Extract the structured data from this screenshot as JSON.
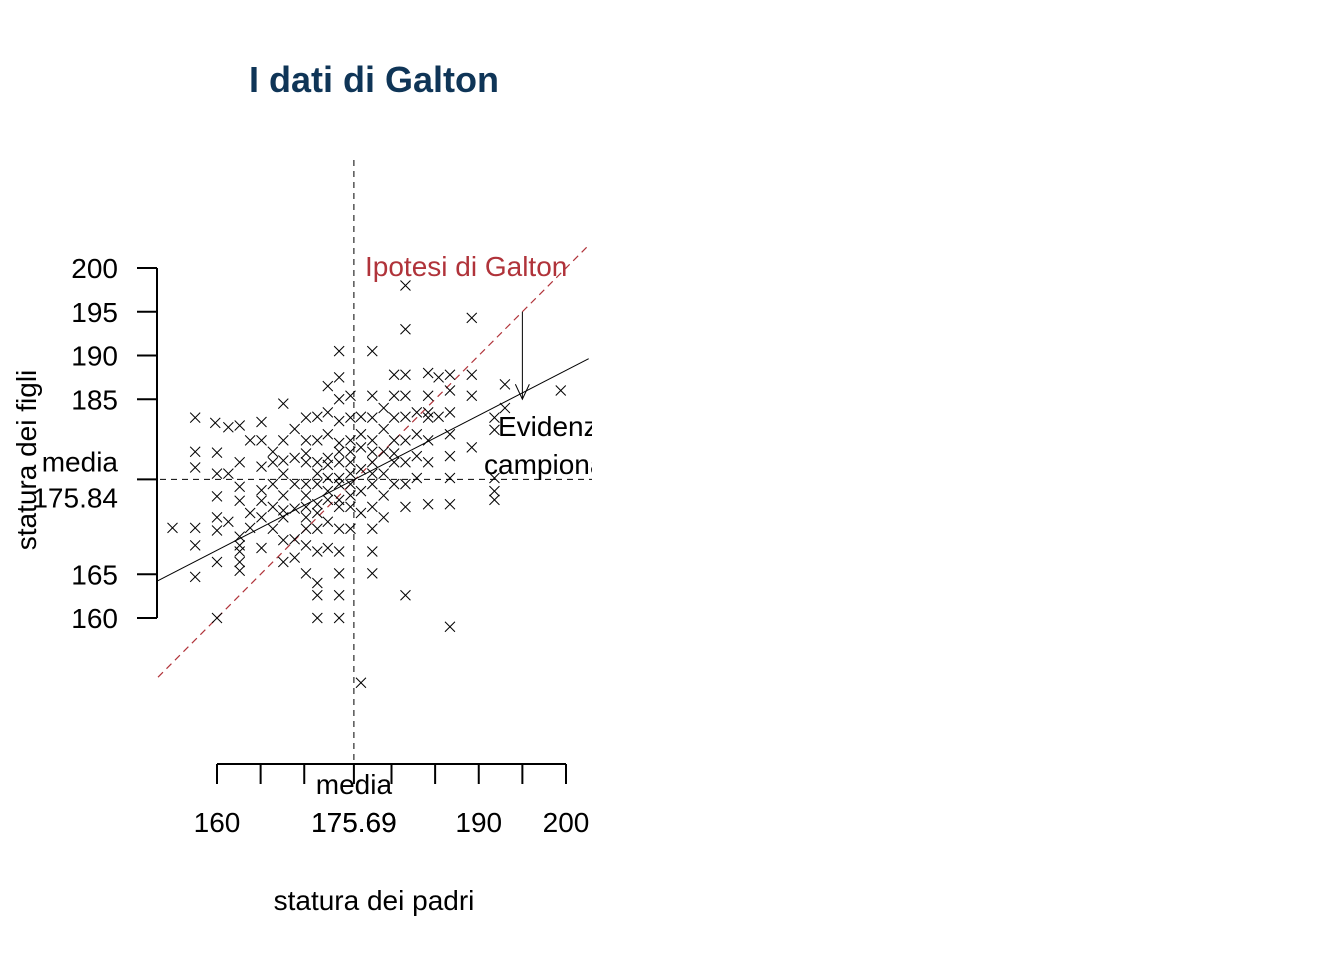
{
  "chart_data": {
    "type": "scatter",
    "title": "I dati di Galton",
    "xlabel": "statura dei padri",
    "ylabel": "statura dei figli",
    "x_ticks": [
      160,
      165,
      170,
      175.69,
      180,
      185,
      190,
      195,
      200
    ],
    "x_tick_labels": [
      {
        "value": 160,
        "text": "160"
      },
      {
        "value": 175.69,
        "text": "175.69"
      },
      {
        "value": 190,
        "text": "190"
      },
      {
        "value": 200,
        "text": "200"
      }
    ],
    "y_ticks": [
      160,
      165,
      175.84,
      185,
      190,
      195,
      200
    ],
    "y_tick_labels": [
      {
        "value": 160,
        "text": "160"
      },
      {
        "value": 165,
        "text": "165"
      },
      {
        "value": 185,
        "text": "185"
      },
      {
        "value": 190,
        "text": "190"
      },
      {
        "value": 195,
        "text": "195"
      },
      {
        "value": 200,
        "text": "200"
      }
    ],
    "xlim": [
      144.5,
      202.6
    ],
    "ylim": [
      152.6,
      207.6
    ],
    "mean_x": 175.69,
    "mean_y": 175.84,
    "mean_x_label": [
      "media",
      "175.69"
    ],
    "mean_y_label": [
      "media",
      "175.84"
    ],
    "identity_line": {
      "slope": 1,
      "intercept": 0,
      "color": "#b0333a",
      "label": "Ipotesi di Galton"
    },
    "regression_line": {
      "slope": 0.514,
      "intercept": 85.5,
      "color": "#000000"
    },
    "annotation_text": [
      "Evidenza",
      "campionaria"
    ],
    "annotation_arrow": {
      "x": 195,
      "y_from": 195,
      "y_to": 185
    },
    "marker": "x",
    "points": [
      [
        152.4,
        163.8
      ],
      [
        154.9,
        170.3
      ],
      [
        157.5,
        170.3
      ],
      [
        157.5,
        177.2
      ],
      [
        157.5,
        182.9
      ],
      [
        157.5,
        179.0
      ],
      [
        157.5,
        168.3
      ],
      [
        157.5,
        164.7
      ],
      [
        159.8,
        182.3
      ],
      [
        160.0,
        176.5
      ],
      [
        160.0,
        171.5
      ],
      [
        160.0,
        166.4
      ],
      [
        160.0,
        160.0
      ],
      [
        160.0,
        173.9
      ],
      [
        160.0,
        170.0
      ],
      [
        160.0,
        178.9
      ],
      [
        161.3,
        181.8
      ],
      [
        161.3,
        176.5
      ],
      [
        161.3,
        171.0
      ],
      [
        162.6,
        182.0
      ],
      [
        162.6,
        177.8
      ],
      [
        162.6,
        173.4
      ],
      [
        162.6,
        168.3
      ],
      [
        162.6,
        166.4
      ],
      [
        162.6,
        165.4
      ],
      [
        162.6,
        169.3
      ],
      [
        162.6,
        167.6
      ],
      [
        162.6,
        175.0
      ],
      [
        163.8,
        180.3
      ],
      [
        163.8,
        172.0
      ],
      [
        163.8,
        170.3
      ],
      [
        165.1,
        177.3
      ],
      [
        165.1,
        174.6
      ],
      [
        165.1,
        171.5
      ],
      [
        165.1,
        168.0
      ],
      [
        165.1,
        180.3
      ],
      [
        165.1,
        182.4
      ],
      [
        165.1,
        173.4
      ],
      [
        166.4,
        179.0
      ],
      [
        166.4,
        175.3
      ],
      [
        166.4,
        172.7
      ],
      [
        166.4,
        170.2
      ],
      [
        166.4,
        177.8
      ],
      [
        167.6,
        184.5
      ],
      [
        167.6,
        180.3
      ],
      [
        167.6,
        176.5
      ],
      [
        167.6,
        174.0
      ],
      [
        167.6,
        171.5
      ],
      [
        167.6,
        168.9
      ],
      [
        167.6,
        166.4
      ],
      [
        167.6,
        172.3
      ],
      [
        167.6,
        178.0
      ],
      [
        168.9,
        181.6
      ],
      [
        168.9,
        178.3
      ],
      [
        168.9,
        175.3
      ],
      [
        168.9,
        172.5
      ],
      [
        168.9,
        169.0
      ],
      [
        168.9,
        166.9
      ],
      [
        170.2,
        182.9
      ],
      [
        170.2,
        180.3
      ],
      [
        170.2,
        177.8
      ],
      [
        170.2,
        175.3
      ],
      [
        170.2,
        172.7
      ],
      [
        170.2,
        170.2
      ],
      [
        170.2,
        168.3
      ],
      [
        170.2,
        165.1
      ],
      [
        170.2,
        178.8
      ],
      [
        170.2,
        174.0
      ],
      [
        170.2,
        171.5
      ],
      [
        171.5,
        183.0
      ],
      [
        171.5,
        180.3
      ],
      [
        171.5,
        177.8
      ],
      [
        171.5,
        175.3
      ],
      [
        171.5,
        173.0
      ],
      [
        171.5,
        170.2
      ],
      [
        171.5,
        167.6
      ],
      [
        171.5,
        164.0
      ],
      [
        171.5,
        162.6
      ],
      [
        171.5,
        160.0
      ],
      [
        171.5,
        176.5
      ],
      [
        171.5,
        172.0
      ],
      [
        172.7,
        186.5
      ],
      [
        172.7,
        183.5
      ],
      [
        172.7,
        181.0
      ],
      [
        172.7,
        178.3
      ],
      [
        172.7,
        176.0
      ],
      [
        172.7,
        173.5
      ],
      [
        172.7,
        171.0
      ],
      [
        172.7,
        168.0
      ],
      [
        172.7,
        177.5
      ],
      [
        172.7,
        174.5
      ],
      [
        174.0,
        190.5
      ],
      [
        174.0,
        187.5
      ],
      [
        174.0,
        185.0
      ],
      [
        174.0,
        182.5
      ],
      [
        174.0,
        180.0
      ],
      [
        174.0,
        177.8
      ],
      [
        174.0,
        175.3
      ],
      [
        174.0,
        172.7
      ],
      [
        174.0,
        170.2
      ],
      [
        174.0,
        167.6
      ],
      [
        174.0,
        165.1
      ],
      [
        174.0,
        162.6
      ],
      [
        174.0,
        160.0
      ],
      [
        174.0,
        179.0
      ],
      [
        174.0,
        176.0
      ],
      [
        174.0,
        173.5
      ],
      [
        175.3,
        185.4
      ],
      [
        175.3,
        182.9
      ],
      [
        175.3,
        180.3
      ],
      [
        175.3,
        177.8
      ],
      [
        175.3,
        175.3
      ],
      [
        175.3,
        172.7
      ],
      [
        175.3,
        170.2
      ],
      [
        175.3,
        179.0
      ],
      [
        175.3,
        176.5
      ],
      [
        175.3,
        174.0
      ],
      [
        176.5,
        152.6
      ],
      [
        176.5,
        183.0
      ],
      [
        176.5,
        179.5
      ],
      [
        176.5,
        177.0
      ],
      [
        176.5,
        174.5
      ],
      [
        176.5,
        172.0
      ],
      [
        176.5,
        181.0
      ],
      [
        177.8,
        190.5
      ],
      [
        177.8,
        185.4
      ],
      [
        177.8,
        182.9
      ],
      [
        177.8,
        180.3
      ],
      [
        177.8,
        177.8
      ],
      [
        177.8,
        175.3
      ],
      [
        177.8,
        172.7
      ],
      [
        177.8,
        170.2
      ],
      [
        177.8,
        167.6
      ],
      [
        177.8,
        165.1
      ],
      [
        177.8,
        179.0
      ],
      [
        177.8,
        176.5
      ],
      [
        179.1,
        184.0
      ],
      [
        179.1,
        181.6
      ],
      [
        179.1,
        179.0
      ],
      [
        179.1,
        176.5
      ],
      [
        179.1,
        174.0
      ],
      [
        179.1,
        171.5
      ],
      [
        180.3,
        187.8
      ],
      [
        180.3,
        185.4
      ],
      [
        180.3,
        182.9
      ],
      [
        180.3,
        180.3
      ],
      [
        180.3,
        177.8
      ],
      [
        180.3,
        175.3
      ],
      [
        180.3,
        178.8
      ],
      [
        181.6,
        193.0
      ],
      [
        181.6,
        187.8
      ],
      [
        181.6,
        185.4
      ],
      [
        181.6,
        183.0
      ],
      [
        181.6,
        180.3
      ],
      [
        181.6,
        177.8
      ],
      [
        181.6,
        175.3
      ],
      [
        181.6,
        172.7
      ],
      [
        181.6,
        162.6
      ],
      [
        181.6,
        198.0
      ],
      [
        182.9,
        183.5
      ],
      [
        182.9,
        181.0
      ],
      [
        182.9,
        178.5
      ],
      [
        182.9,
        176.0
      ],
      [
        184.2,
        188.0
      ],
      [
        184.2,
        185.4
      ],
      [
        184.2,
        182.9
      ],
      [
        184.2,
        180.3
      ],
      [
        184.2,
        177.8
      ],
      [
        184.2,
        173.0
      ],
      [
        184.2,
        183.5
      ],
      [
        185.4,
        187.5
      ],
      [
        185.4,
        183.0
      ],
      [
        186.7,
        186.0
      ],
      [
        186.7,
        183.5
      ],
      [
        186.7,
        181.0
      ],
      [
        186.7,
        178.5
      ],
      [
        186.7,
        176.0
      ],
      [
        186.7,
        173.0
      ],
      [
        186.7,
        159.0
      ],
      [
        186.7,
        187.8
      ],
      [
        189.2,
        194.3
      ],
      [
        189.2,
        187.8
      ],
      [
        189.2,
        185.4
      ],
      [
        189.2,
        179.5
      ],
      [
        191.8,
        182.9
      ],
      [
        191.8,
        181.5
      ],
      [
        191.8,
        176.0
      ],
      [
        191.8,
        174.5
      ],
      [
        191.8,
        173.5
      ],
      [
        193.0,
        186.7
      ],
      [
        193.0,
        184.0
      ],
      [
        199.4,
        186.0
      ]
    ]
  }
}
